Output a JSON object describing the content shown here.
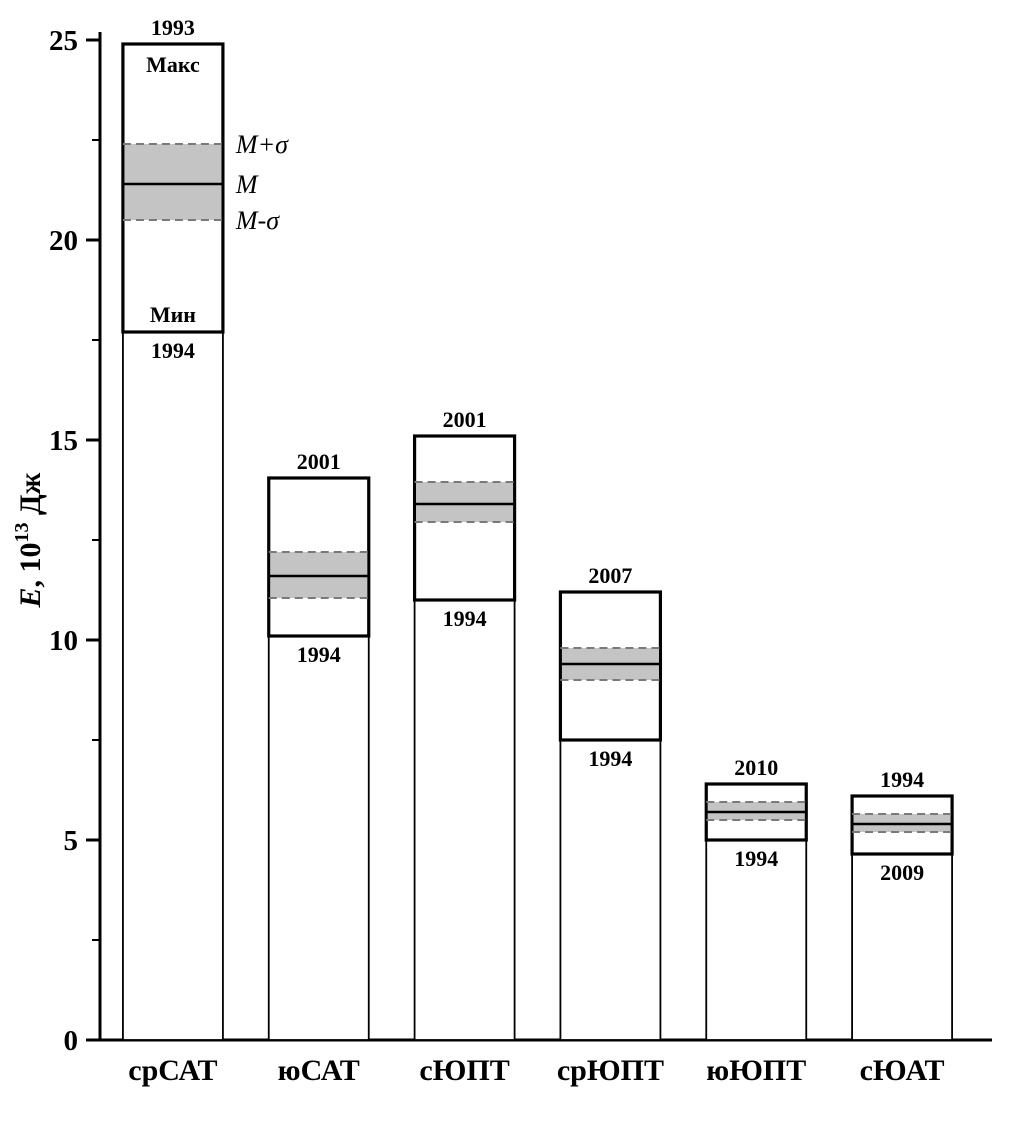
{
  "chart_data": {
    "type": "bar",
    "subtype": "floating-range-bars-with-mean-sigma-band",
    "title": "",
    "ylabel": {
      "italic_part": "E",
      "middle_part": ", 10",
      "superscript": "13",
      "unit_part": " Дж"
    },
    "ylim": [
      0,
      25
    ],
    "yticks": [
      0,
      5,
      10,
      15,
      20,
      25
    ],
    "yminorticks": [
      2.5,
      7.5,
      12.5,
      17.5,
      22.5
    ],
    "grid": false,
    "legend_position": "none",
    "colors": {
      "axis": "#000000",
      "bar_fill": "#ffffff",
      "bar_stroke": "#000000",
      "band_fill": "#c4c4c4",
      "dashed_line": "#7a7a7a",
      "mean_line": "#000000"
    },
    "categories": [
      "срСАТ",
      "юСАТ",
      "сЮПТ",
      "срЮПТ",
      "юЮПТ",
      "сЮАТ"
    ],
    "bars": [
      {
        "category": "срСАТ",
        "max": 24.9,
        "min": 17.7,
        "m_plus_sigma": 22.4,
        "mean": 21.4,
        "m_minus_sigma": 20.5,
        "year_max": "1993",
        "year_min": "1994",
        "label_max": "Макс",
        "label_min": "Мин"
      },
      {
        "category": "юСАТ",
        "max": 14.05,
        "min": 10.1,
        "m_plus_sigma": 12.2,
        "mean": 11.6,
        "m_minus_sigma": 11.05,
        "year_max": "2001",
        "year_min": "1994"
      },
      {
        "category": "сЮПТ",
        "max": 15.1,
        "min": 11.0,
        "m_plus_sigma": 13.95,
        "mean": 13.4,
        "m_minus_sigma": 12.95,
        "year_max": "2001",
        "year_min": "1994"
      },
      {
        "category": "срЮПТ",
        "max": 11.2,
        "min": 7.5,
        "m_plus_sigma": 9.8,
        "mean": 9.4,
        "m_minus_sigma": 9.0,
        "year_max": "2007",
        "year_min": "1994"
      },
      {
        "category": "юЮПТ",
        "max": 6.4,
        "min": 5.0,
        "m_plus_sigma": 5.95,
        "mean": 5.7,
        "m_minus_sigma": 5.5,
        "year_max": "2010",
        "year_min": "1994"
      },
      {
        "category": "сЮАТ",
        "max": 6.1,
        "min": 4.65,
        "m_plus_sigma": 5.65,
        "mean": 5.4,
        "m_minus_sigma": 5.2,
        "year_max": "1994",
        "year_min": "2009"
      }
    ],
    "band_annotations": [
      {
        "text": "M+σ",
        "level": "m_plus_sigma"
      },
      {
        "text": "M",
        "level": "mean"
      },
      {
        "text": "M-σ",
        "level": "m_minus_sigma"
      }
    ]
  }
}
